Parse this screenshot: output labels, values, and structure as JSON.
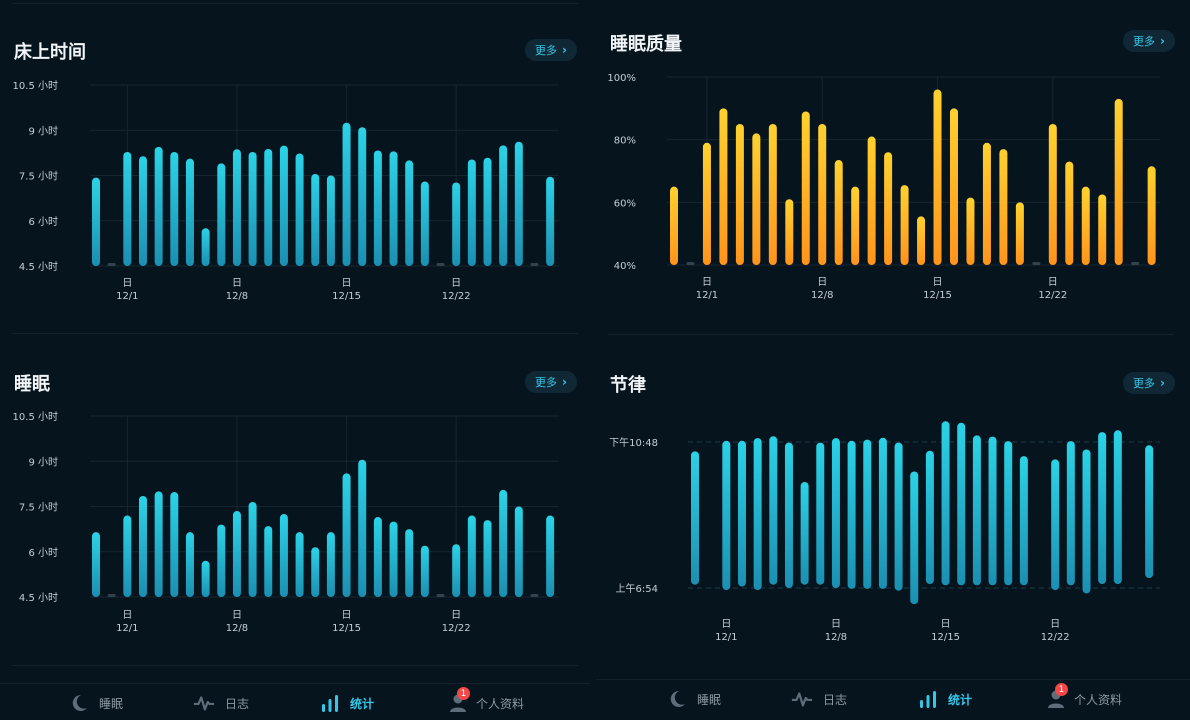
{
  "left_panel": {
    "time_in_bed": {
      "title": "床上时间",
      "more_label": "更多"
    },
    "sleep": {
      "title": "睡眠",
      "more_label": "更多"
    }
  },
  "right_panel": {
    "sleep_quality": {
      "title": "睡眠质量",
      "more_label": "更多"
    },
    "rhythm": {
      "title": "节律",
      "more_label": "更多"
    }
  },
  "nav": {
    "items": [
      {
        "label": "睡眠",
        "icon": "moon-icon"
      },
      {
        "label": "日志",
        "icon": "pulse-icon"
      },
      {
        "label": "统计",
        "icon": "bar-chart-icon",
        "active": true
      },
      {
        "label": "个人资料",
        "icon": "person-icon",
        "badge": "1"
      }
    ]
  },
  "colors": {
    "background": "#06141e",
    "accent": "#36c6e6",
    "bar_cyan_top": "#2bd3e6",
    "bar_cyan_bottom": "#1b8fb2",
    "bar_orange_top": "#ffd22e",
    "bar_orange_bottom": "#ff941c",
    "missing": "#33434d"
  },
  "chart_data": [
    {
      "id": "time_in_bed",
      "type": "bar",
      "title": "床上时间",
      "ylabel": "小时",
      "ylim": [
        4.5,
        10.5
      ],
      "yticks": [
        {
          "v": 10.5,
          "label": "10.5 小时"
        },
        {
          "v": 9,
          "label": "9 小时"
        },
        {
          "v": 7.5,
          "label": "7.5 小时"
        },
        {
          "v": 6,
          "label": "6 小时"
        },
        {
          "v": 4.5,
          "label": "4.5 小时"
        }
      ],
      "xticks": [
        {
          "i": 2,
          "day": "日",
          "date": "12/1"
        },
        {
          "i": 9,
          "day": "日",
          "date": "12/8"
        },
        {
          "i": 16,
          "day": "日",
          "date": "12/15"
        },
        {
          "i": 23,
          "day": "日",
          "date": "12/22"
        }
      ],
      "values": [
        7.43,
        null,
        8.28,
        8.14,
        8.45,
        8.28,
        8.06,
        5.75,
        7.9,
        8.37,
        8.28,
        8.38,
        8.49,
        8.23,
        7.55,
        7.5,
        9.25,
        9.1,
        8.33,
        8.3,
        8.0,
        7.3,
        null,
        7.27,
        8.03,
        8.09,
        8.5,
        8.62,
        null,
        7.46
      ]
    },
    {
      "id": "sleep",
      "type": "bar",
      "title": "睡眠",
      "ylabel": "小时",
      "ylim": [
        4.5,
        10.5
      ],
      "yticks": [
        {
          "v": 10.5,
          "label": "10.5 小时"
        },
        {
          "v": 9,
          "label": "9 小时"
        },
        {
          "v": 7.5,
          "label": "7.5 小时"
        },
        {
          "v": 6,
          "label": "6 小时"
        },
        {
          "v": 4.5,
          "label": "4.5 小时"
        }
      ],
      "xticks": [
        {
          "i": 2,
          "day": "日",
          "date": "12/1"
        },
        {
          "i": 9,
          "day": "日",
          "date": "12/8"
        },
        {
          "i": 16,
          "day": "日",
          "date": "12/15"
        },
        {
          "i": 23,
          "day": "日",
          "date": "12/22"
        }
      ],
      "values": [
        6.65,
        null,
        7.2,
        7.85,
        8.0,
        7.98,
        6.65,
        5.7,
        6.9,
        7.35,
        7.65,
        6.85,
        7.25,
        6.65,
        6.15,
        6.65,
        8.6,
        9.05,
        7.15,
        7.0,
        6.75,
        6.2,
        null,
        6.25,
        7.2,
        7.05,
        8.05,
        7.5,
        null,
        7.2
      ]
    },
    {
      "id": "sleep_quality",
      "type": "bar",
      "title": "睡眠质量",
      "ylabel": "%",
      "ylim": [
        40,
        100
      ],
      "yticks": [
        {
          "v": 100,
          "label": "100%"
        },
        {
          "v": 80,
          "label": "80%"
        },
        {
          "v": 60,
          "label": "60%"
        },
        {
          "v": 40,
          "label": "40%"
        }
      ],
      "xticks": [
        {
          "i": 2,
          "day": "日",
          "date": "12/1"
        },
        {
          "i": 9,
          "day": "日",
          "date": "12/8"
        },
        {
          "i": 16,
          "day": "日",
          "date": "12/15"
        },
        {
          "i": 23,
          "day": "日",
          "date": "12/22"
        }
      ],
      "values": [
        65,
        null,
        79,
        90,
        85,
        82,
        85,
        61,
        89,
        85,
        73.5,
        65,
        81,
        76,
        65.5,
        55.5,
        96,
        90,
        61.5,
        79,
        77,
        60,
        null,
        85,
        73,
        65,
        62.5,
        93,
        null,
        71.5
      ]
    },
    {
      "id": "rhythm",
      "type": "range-bar",
      "title": "节律",
      "yticks": [
        {
          "time": "22:48",
          "label": "下午10:48"
        },
        {
          "time": "06:54",
          "label": "上午6:54"
        }
      ],
      "xticks": [
        {
          "i": 2,
          "day": "日",
          "date": "12/1"
        },
        {
          "i": 9,
          "day": "日",
          "date": "12/8"
        },
        {
          "i": 16,
          "day": "日",
          "date": "12/15"
        },
        {
          "i": 23,
          "day": "日",
          "date": "12/22"
        }
      ],
      "ranges": [
        [
          "23:19",
          "06:43"
        ],
        null,
        [
          "22:44",
          "07:01"
        ],
        [
          "22:44",
          "06:49"
        ],
        [
          "22:35",
          "07:01"
        ],
        [
          "22:29",
          "06:43"
        ],
        [
          "22:50",
          "06:54"
        ],
        [
          "01:01",
          "06:43"
        ],
        [
          "22:50",
          "06:43"
        ],
        [
          "22:35",
          "06:54"
        ],
        [
          "22:44",
          "06:57"
        ],
        [
          "22:40",
          "06:57"
        ],
        [
          "22:34",
          "06:57"
        ],
        [
          "22:50",
          "07:03"
        ],
        [
          "00:26",
          "07:48"
        ],
        [
          "23:17",
          "06:41"
        ],
        [
          "21:39",
          "06:45"
        ],
        [
          "21:44",
          "06:45"
        ],
        [
          "22:26",
          "06:45"
        ],
        [
          "22:30",
          "06:45"
        ],
        [
          "22:45",
          "06:45"
        ],
        [
          "23:35",
          "06:45"
        ],
        null,
        [
          "23:46",
          "07:01"
        ],
        [
          "22:45",
          "06:45"
        ],
        [
          "23:13",
          "07:12"
        ],
        [
          "22:15",
          "06:41"
        ],
        [
          "22:09",
          "06:41"
        ],
        null,
        [
          "22:59",
          "06:21"
        ]
      ]
    }
  ]
}
